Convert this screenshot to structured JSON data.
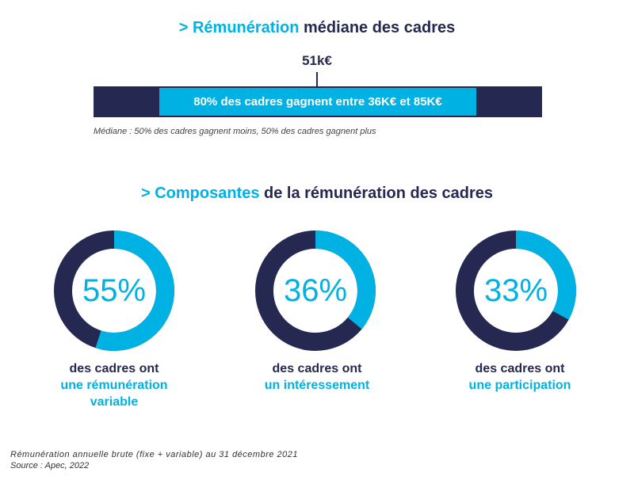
{
  "section1": {
    "title_prefix": "> Rémunération",
    "title_rest": " médiane des cadres",
    "median_label": "51k€",
    "range_label": "80% des cadres gagnent entre 36K€ et 85K€",
    "note": "Médiane : 50% des cadres gagnent moins, 50% des cadres gagnent plus"
  },
  "section2": {
    "title_prefix": "> Composantes",
    "title_rest": " de la rémunération des cadres"
  },
  "colors": {
    "navy": "#252850",
    "accent": "#00b2e3",
    "white": "#ffffff"
  },
  "chart_data": [
    {
      "type": "bar",
      "label": "80% des cadres gagnent entre 36K€ et 85K€",
      "median": 51,
      "range": [
        36,
        85
      ],
      "unit": "k€"
    },
    {
      "type": "pie",
      "style": "donut",
      "donuts": [
        {
          "value": 55,
          "label": "55%",
          "caption_line1": "des cadres ont",
          "caption_line2": "une rémunération",
          "caption_line3": "variable"
        },
        {
          "value": 36,
          "label": "36%",
          "caption_line1": "des cadres ont",
          "caption_line2": "un intéressement",
          "caption_line3": ""
        },
        {
          "value": 33,
          "label": "33%",
          "caption_line1": "des cadres ont",
          "caption_line2": "une participation",
          "caption_line3": ""
        }
      ]
    }
  ],
  "footnote": {
    "line1": "Rémunération annuelle brute (fixe + variable) au 31 décembre 2021",
    "line2": "Source : Apec, 2022"
  }
}
